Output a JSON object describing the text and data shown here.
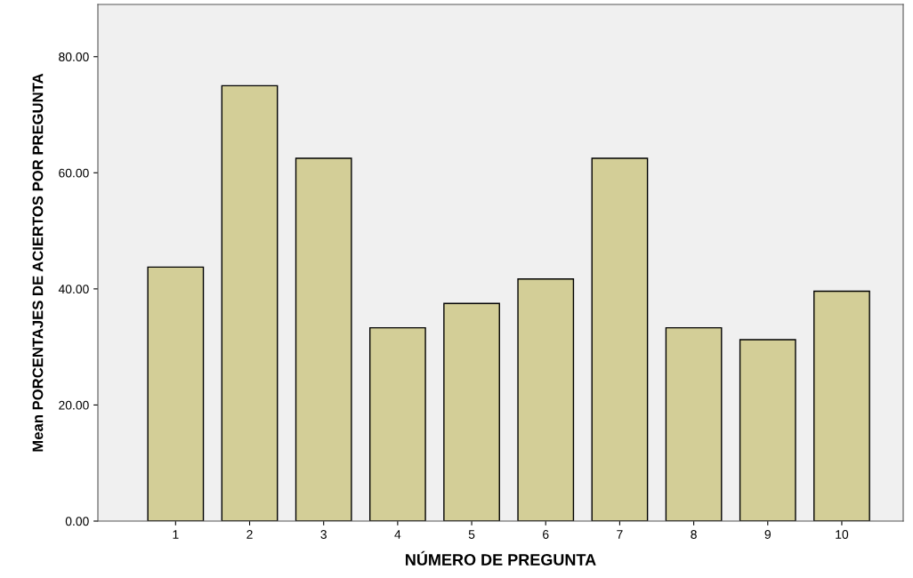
{
  "chart_data": {
    "type": "bar",
    "xlabel": "NÚMERO DE PREGUNTA",
    "ylabel": "Mean PORCENTAJES DE ACIERTOS POR PREGUNTA",
    "categories": [
      "1",
      "2",
      "3",
      "4",
      "5",
      "6",
      "7",
      "8",
      "9",
      "10"
    ],
    "values": [
      43.75,
      75,
      62.5,
      33.3,
      37.5,
      41.7,
      62.5,
      33.3,
      31.25,
      39.6
    ],
    "color": "#d3ce97",
    "ylim": [
      0,
      89
    ],
    "yticks": [
      {
        "value": 0,
        "label": "0.00"
      },
      {
        "value": 20,
        "label": "20.00"
      },
      {
        "value": 40,
        "label": "40.00"
      },
      {
        "value": 60,
        "label": "60.00"
      },
      {
        "value": 80,
        "label": "80.00"
      }
    ],
    "grid": false
  }
}
